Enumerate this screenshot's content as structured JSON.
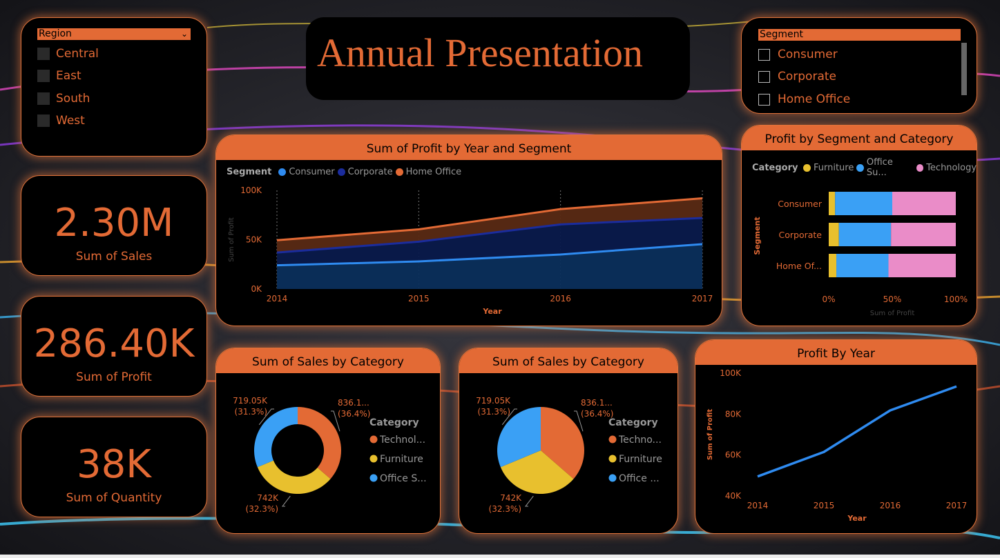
{
  "colors": {
    "accent": "#e36a35",
    "consumer": "#2f8bf0",
    "corporate": "#1b2c9c",
    "home_office": "#e36a35",
    "furniture": "#e8c02e",
    "office_supplies": "#3aa0f5",
    "technology": "#ea8cc8",
    "area_consumer": "#0b2f5c",
    "area_corporate": "#0a1a4c",
    "area_home_office": "#5a2a14"
  },
  "title": "Annual Presentation",
  "region_slicer": {
    "header": "Region",
    "items": [
      "Central",
      "East",
      "South",
      "West"
    ]
  },
  "segment_slicer": {
    "header": "Segment",
    "items": [
      "Consumer",
      "Corporate",
      "Home Office"
    ]
  },
  "kpis": [
    {
      "value": "2.30M",
      "label": "Sum of Sales"
    },
    {
      "value": "286.40K",
      "label": "Sum of Profit"
    },
    {
      "value": "38K",
      "label": "Sum of Quantity"
    }
  ],
  "chart_data": [
    {
      "type": "area",
      "title": "Sum of Profit by Year and Segment",
      "legend_title": "Segment",
      "xlabel": "Year",
      "ylabel": "Sum of Profit",
      "x": [
        "2014",
        "2015",
        "2016",
        "2017"
      ],
      "y_ticks": [
        "0K",
        "50K",
        "100K"
      ],
      "ylim": [
        0,
        100000
      ],
      "stacked": true,
      "series": [
        {
          "name": "Consumer",
          "values": [
            24000,
            28000,
            35000,
            45500
          ]
        },
        {
          "name": "Corporate",
          "values": [
            13000,
            20000,
            30500,
            26500
          ]
        },
        {
          "name": "Home Office",
          "values": [
            12500,
            12500,
            15500,
            20000
          ]
        }
      ]
    },
    {
      "type": "bar",
      "orientation": "horizontal",
      "stacked_percent": true,
      "title": "Profit by Segment and Category",
      "legend_title": "Category",
      "legend_labels": [
        "Furniture",
        "Office Su...",
        "Technology"
      ],
      "ylabel": "Segment",
      "xlabel": "Sum of Profit",
      "categories": [
        "Consumer",
        "Corporate",
        "Home Of..."
      ],
      "x_ticks": [
        "0%",
        "50%",
        "100%"
      ],
      "series": [
        {
          "name": "Furniture",
          "values": [
            5,
            8,
            6
          ]
        },
        {
          "name": "Office Supplies",
          "values": [
            45,
            41,
            41
          ]
        },
        {
          "name": "Technology",
          "values": [
            50,
            51,
            53
          ]
        }
      ]
    },
    {
      "type": "pie",
      "donut": true,
      "title": "Sum of Sales by Category",
      "legend_title": "Category",
      "legend_labels": [
        "Technol...",
        "Furniture",
        "Office S..."
      ],
      "slices": [
        {
          "name": "Technology",
          "value": 836.1,
          "label": "836.1...",
          "pct": "(36.4%)"
        },
        {
          "name": "Furniture",
          "value": 742,
          "label": "742K",
          "pct": "(32.3%)"
        },
        {
          "name": "Office Supplies",
          "value": 719.05,
          "label": "719.05K",
          "pct": "(31.3%)"
        }
      ]
    },
    {
      "type": "pie",
      "donut": false,
      "title": "Sum of Sales by Category",
      "legend_title": "Category",
      "legend_labels": [
        "Techno...",
        "Furniture",
        "Office ..."
      ],
      "slices": [
        {
          "name": "Technology",
          "value": 836.1,
          "label": "836.1...",
          "pct": "(36.4%)"
        },
        {
          "name": "Furniture",
          "value": 742,
          "label": "742K",
          "pct": "(32.3%)"
        },
        {
          "name": "Office Supplies",
          "value": 719.05,
          "label": "719.05K",
          "pct": "(31.3%)"
        }
      ]
    },
    {
      "type": "line",
      "title": "Profit By Year",
      "xlabel": "Year",
      "ylabel": "Sum of Profit",
      "x": [
        "2014",
        "2015",
        "2016",
        "2017"
      ],
      "values": [
        49500,
        61500,
        81800,
        93500
      ],
      "ylim": [
        40000,
        100000
      ],
      "y_ticks": [
        "40K",
        "60K",
        "80K",
        "100K"
      ]
    }
  ]
}
